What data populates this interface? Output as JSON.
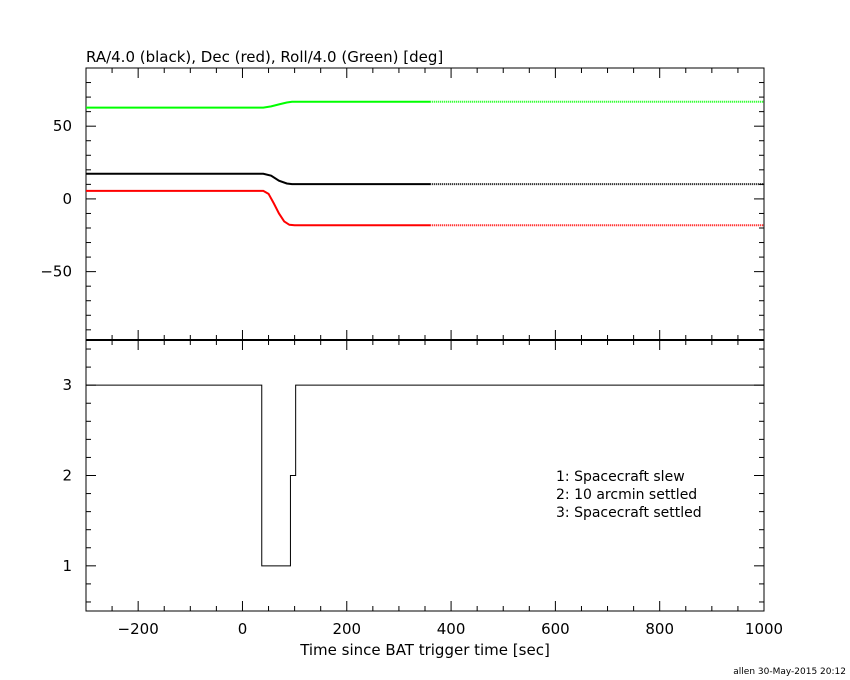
{
  "chart_data": [
    {
      "type": "line",
      "title": "RA/4.0 (black), Dec (red), Roll/4.0 (Green) [deg]",
      "xlim": [
        -300,
        1000
      ],
      "ylim": [
        -97,
        90
      ],
      "yticks": [
        -50,
        0,
        50
      ],
      "grid": false,
      "series": [
        {
          "color": "#00ff00",
          "x": [
            -300,
            40,
            55,
            70,
            85,
            95,
            360
          ],
          "y": [
            62.8,
            62.8,
            63.6,
            65.0,
            66.3,
            66.8,
            66.8
          ],
          "continued_dotted_to": 1000
        },
        {
          "color": "#000000",
          "x": [
            -300,
            40,
            55,
            70,
            85,
            95,
            360
          ],
          "y": [
            17.3,
            17.3,
            16.0,
            12.5,
            10.6,
            10.2,
            10.2
          ],
          "continued_dotted_to": 1000
        },
        {
          "color": "#ff0000",
          "x": [
            -300,
            40,
            50,
            60,
            70,
            80,
            90,
            100,
            360
          ],
          "y": [
            5.5,
            5.5,
            3.5,
            -3.0,
            -10.0,
            -15.5,
            -17.8,
            -18.1,
            -18.1
          ],
          "continued_dotted_to": 1000
        }
      ]
    },
    {
      "type": "line",
      "step": true,
      "xlabel": "Time since BAT trigger time [sec]",
      "xlim": [
        -300,
        1000
      ],
      "ylim": [
        0.5,
        3.5
      ],
      "yticks": [
        1,
        2,
        3
      ],
      "xticks": [
        -200,
        0,
        200,
        400,
        600,
        800,
        1000
      ],
      "grid": false,
      "legend": {
        "placement": "right-center",
        "entries": [
          "1: Spacecraft slew",
          "2: 10 arcmin settled",
          "3: Spacecraft settled"
        ]
      },
      "series": [
        {
          "color": "#000000",
          "x": [
            -300,
            37,
            37,
            92,
            92,
            102,
            102,
            1000
          ],
          "y": [
            3,
            3,
            1,
            1,
            2,
            2,
            3,
            3
          ]
        }
      ]
    }
  ],
  "footer": "allen 30-May-2015 20:12"
}
